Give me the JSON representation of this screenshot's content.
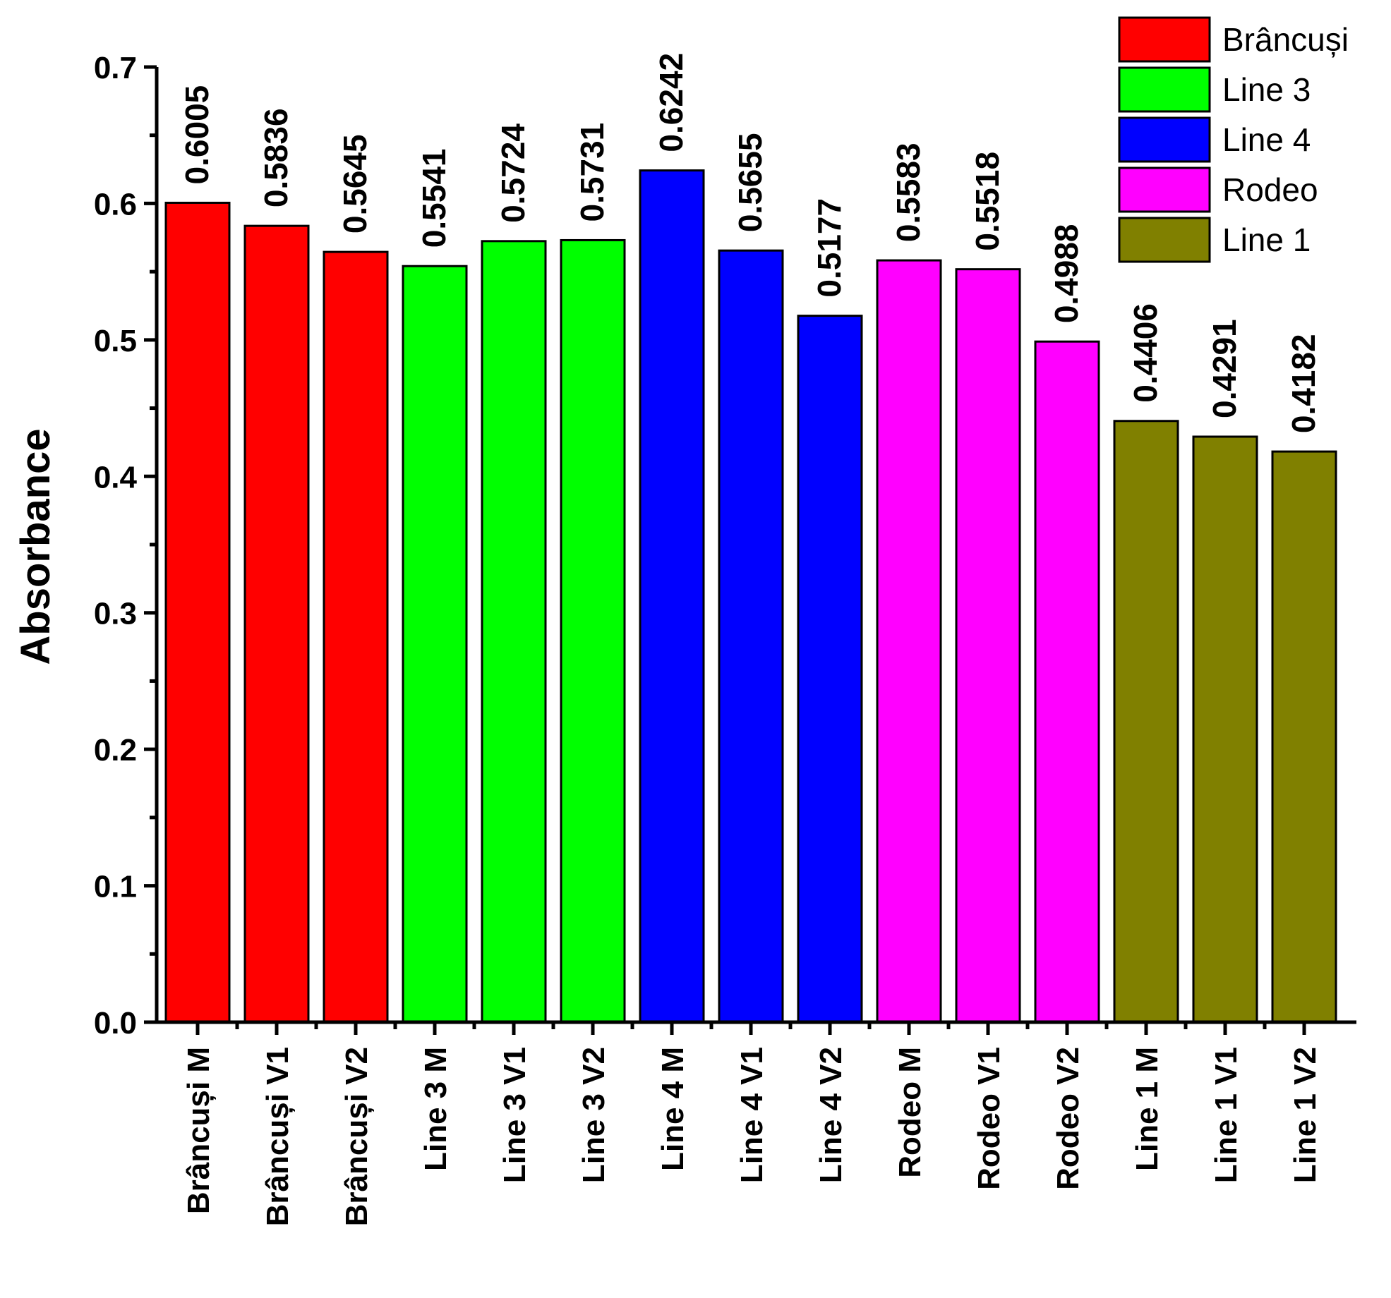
{
  "chart_data": {
    "type": "bar",
    "title": "",
    "xlabel": "",
    "ylabel": "Absorbance",
    "ylim": [
      0,
      0.7
    ],
    "yticks": [
      0.0,
      0.1,
      0.2,
      0.3,
      0.4,
      0.5,
      0.6,
      0.7
    ],
    "ytick_labels": [
      "0.0",
      "0.1",
      "0.2",
      "0.3",
      "0.4",
      "0.5",
      "0.6",
      "0.7"
    ],
    "categories": [
      "Brâncuși M",
      "Brâncuși V1",
      "Brâncuși V2",
      "Line 3 M",
      "Line 3 V1",
      "Line 3 V2",
      "Line 4 M",
      "Line 4 V1",
      "Line 4 V2",
      "Rodeo M",
      "Rodeo V1",
      "Rodeo V2",
      "Line 1 M",
      "Line 1 V1",
      "Line 1 V2"
    ],
    "values": [
      0.6005,
      0.5836,
      0.5645,
      0.5541,
      0.5724,
      0.5731,
      0.6242,
      0.5655,
      0.5177,
      0.5583,
      0.5518,
      0.4988,
      0.4406,
      0.4291,
      0.4182
    ],
    "value_labels": [
      "0.6005",
      "0.5836",
      "0.5645",
      "0.5541",
      "0.5724",
      "0.5731",
      "0.6242",
      "0.5655",
      "0.5177",
      "0.5583",
      "0.5518",
      "0.4988",
      "0.4406",
      "0.4291",
      "0.4182"
    ],
    "groups": [
      0,
      0,
      0,
      1,
      1,
      1,
      2,
      2,
      2,
      3,
      3,
      3,
      4,
      4,
      4
    ],
    "legend": [
      {
        "label": "Brâncuși",
        "color": "#ff0000"
      },
      {
        "label": "Line 3",
        "color": "#00ff00"
      },
      {
        "label": "Line 4",
        "color": "#0000ff"
      },
      {
        "label": "Rodeo",
        "color": "#ff00ff"
      },
      {
        "label": "Line 1",
        "color": "#808000"
      }
    ],
    "legend_position": "top-right",
    "grid": false
  }
}
